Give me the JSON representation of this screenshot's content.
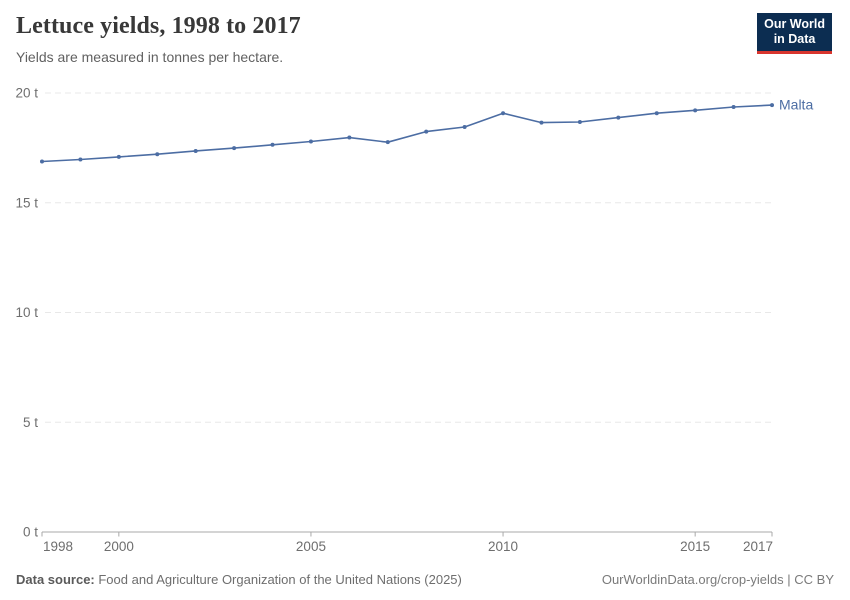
{
  "header": {
    "title": "Lettuce yields, 1998 to 2017",
    "subtitle": "Yields are measured in tonnes per hectare.",
    "logo_line1": "Our World",
    "logo_line2": "in Data"
  },
  "chart_data": {
    "type": "line",
    "title": "Lettuce yields, 1998 to 2017",
    "ylabel": "tonnes per hectare",
    "xlabel": "",
    "ylim": [
      0,
      20
    ],
    "grid": "horizontal-dashed",
    "legend_position": "end-of-line",
    "x": [
      1998,
      1999,
      2000,
      2001,
      2002,
      2003,
      2004,
      2005,
      2006,
      2007,
      2008,
      2009,
      2010,
      2011,
      2012,
      2013,
      2014,
      2015,
      2016,
      2017
    ],
    "series": [
      {
        "name": "Malta",
        "color": "#4c6da3",
        "values": [
          16.88,
          16.97,
          17.09,
          17.21,
          17.36,
          17.49,
          17.64,
          17.79,
          17.97,
          17.76,
          18.24,
          18.45,
          19.08,
          18.65,
          18.68,
          18.88,
          19.08,
          19.21,
          19.36,
          19.45
        ]
      }
    ],
    "y_ticks": [
      {
        "value": 0,
        "label": "0 t"
      },
      {
        "value": 5,
        "label": "5 t"
      },
      {
        "value": 10,
        "label": "10 t"
      },
      {
        "value": 15,
        "label": "15 t"
      },
      {
        "value": 20,
        "label": "20 t"
      }
    ],
    "x_ticks": [
      {
        "value": 1998,
        "label": "1998"
      },
      {
        "value": 2000,
        "label": "2000"
      },
      {
        "value": 2005,
        "label": "2005"
      },
      {
        "value": 2010,
        "label": "2010"
      },
      {
        "value": 2015,
        "label": "2015"
      },
      {
        "value": 2017,
        "label": "2017"
      }
    ]
  },
  "footer": {
    "source_label": "Data source:",
    "source_text": " Food and Agriculture Organization of the United Nations (2025)",
    "attribution": "OurWorldinData.org/crop-yields | CC BY"
  },
  "colors": {
    "line": "#4c6da3",
    "grid": "#e8e8e8",
    "axis": "#a9a9a9",
    "tick_label": "#6e6e6e",
    "logo_bg": "#0c2d51",
    "logo_underline": "#d8352e"
  }
}
